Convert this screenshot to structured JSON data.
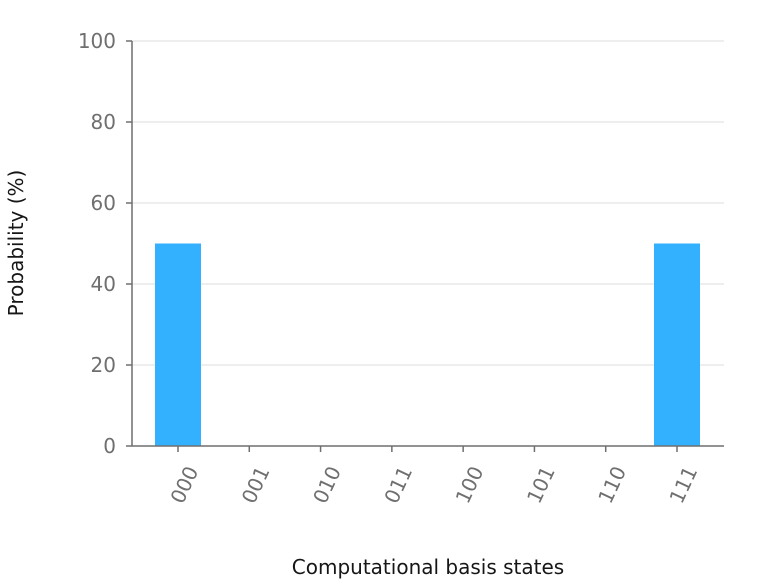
{
  "chart_data": {
    "type": "bar",
    "categories": [
      "000",
      "001",
      "010",
      "011",
      "100",
      "101",
      "110",
      "111"
    ],
    "values": [
      50,
      0,
      0,
      0,
      0,
      0,
      0,
      50
    ],
    "xlabel": "Computational basis states",
    "ylabel": "Probability (%)",
    "ylim": [
      0,
      100
    ],
    "yticks": [
      0,
      20,
      40,
      60,
      80,
      100
    ],
    "grid": true,
    "bar_color": "#33b1ff",
    "axis_color": "#6f6f6f",
    "grid_color": "#dcdcdc"
  }
}
